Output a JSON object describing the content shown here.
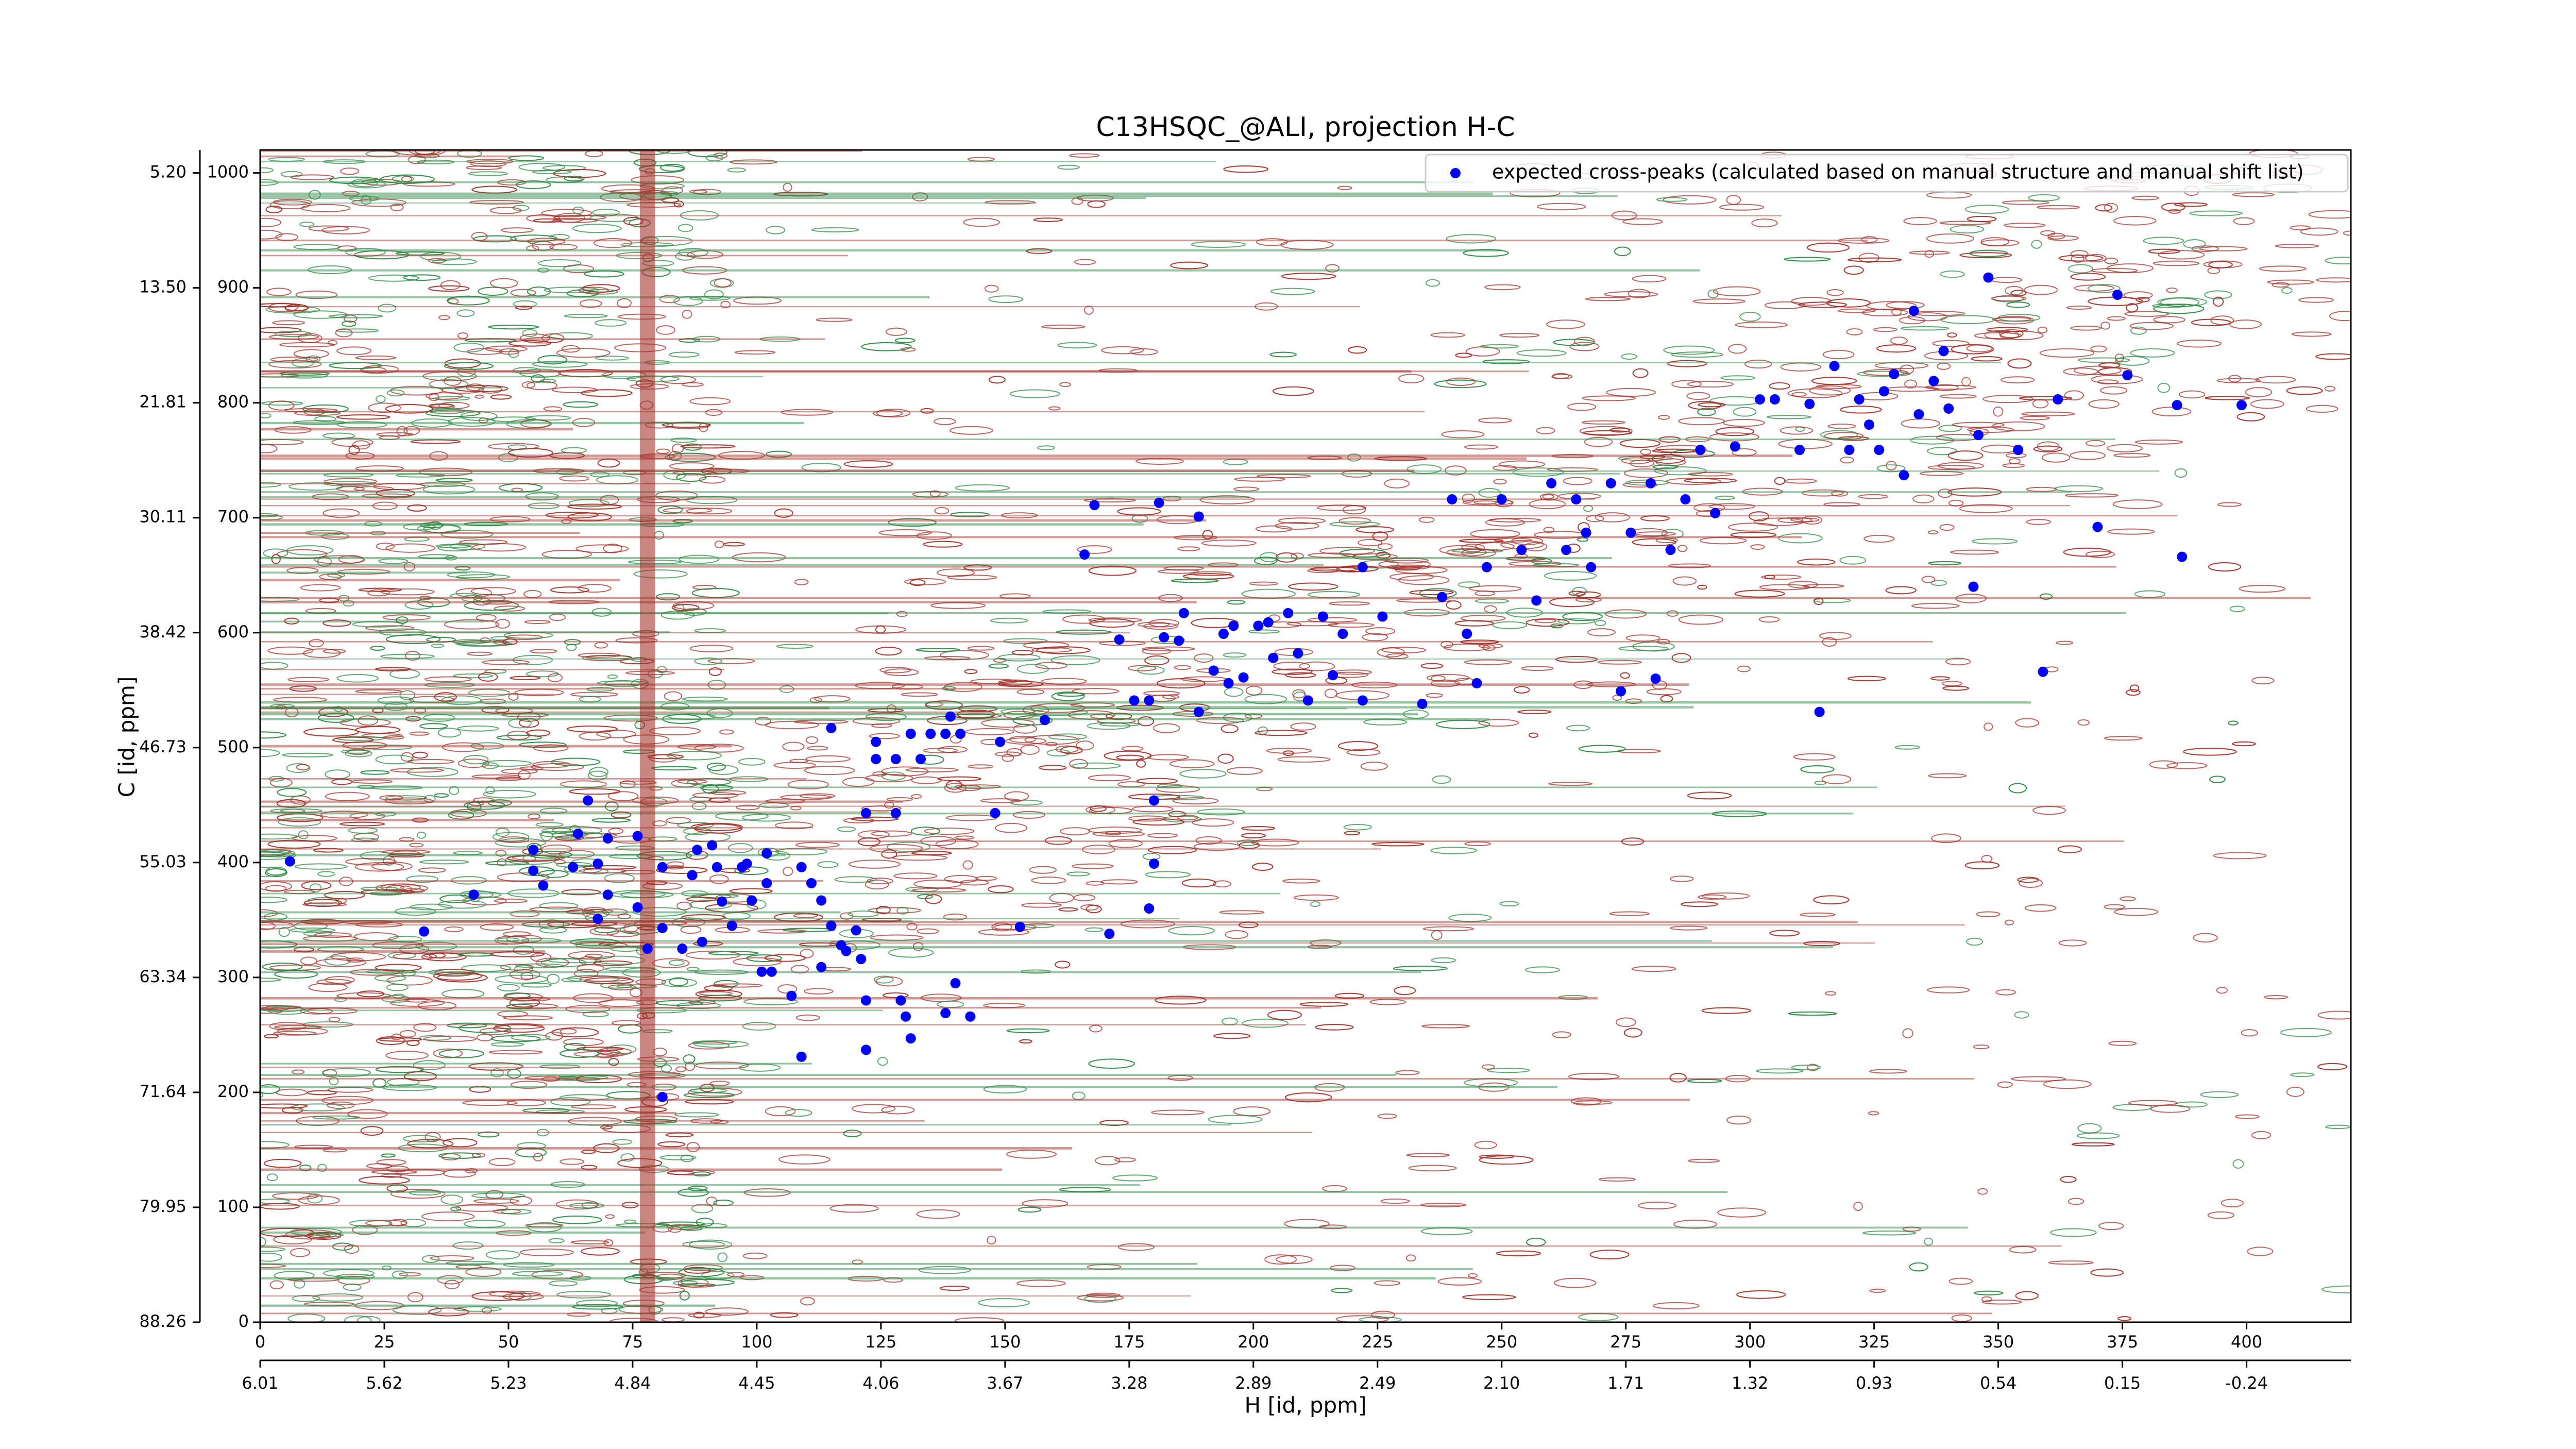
{
  "chart_data": {
    "type": "scatter",
    "title": "C13HSQC_@ALI, projection H-C",
    "xlabel": "H [id, ppm]",
    "ylabel": "C [id, ppm]",
    "xlim": [
      0,
      421
    ],
    "ylim": [
      0,
      1020
    ],
    "xticks": [
      0,
      25,
      50,
      75,
      100,
      125,
      150,
      175,
      200,
      225,
      250,
      275,
      300,
      325,
      350,
      375,
      400
    ],
    "x2ticks": [
      {
        "value": 0,
        "label": "6.01"
      },
      {
        "value": 25,
        "label": "5.62"
      },
      {
        "value": 50,
        "label": "5.23"
      },
      {
        "value": 75,
        "label": "4.84"
      },
      {
        "value": 100,
        "label": "4.45"
      },
      {
        "value": 125,
        "label": "4.06"
      },
      {
        "value": 150,
        "label": "3.67"
      },
      {
        "value": 175,
        "label": "3.28"
      },
      {
        "value": 200,
        "label": "2.89"
      },
      {
        "value": 225,
        "label": "2.49"
      },
      {
        "value": 250,
        "label": "2.10"
      },
      {
        "value": 275,
        "label": "1.71"
      },
      {
        "value": 300,
        "label": "1.32"
      },
      {
        "value": 325,
        "label": "0.93"
      },
      {
        "value": 350,
        "label": "0.54"
      },
      {
        "value": 375,
        "label": "0.15"
      },
      {
        "value": 400,
        "label": "-0.24"
      }
    ],
    "yticks": [
      0,
      100,
      200,
      300,
      400,
      500,
      600,
      700,
      800,
      900,
      1000
    ],
    "y2ticks": [
      {
        "value": 0,
        "label": "88.26"
      },
      {
        "value": 100,
        "label": "79.95"
      },
      {
        "value": 200,
        "label": "71.64"
      },
      {
        "value": 300,
        "label": "63.34"
      },
      {
        "value": 400,
        "label": "55.03"
      },
      {
        "value": 500,
        "label": "46.73"
      },
      {
        "value": 600,
        "label": "38.42"
      },
      {
        "value": 700,
        "label": "30.11"
      },
      {
        "value": 800,
        "label": "21.81"
      },
      {
        "value": 900,
        "label": "13.50"
      },
      {
        "value": 1000,
        "label": "5.20"
      }
    ],
    "legend": "upper right",
    "series": [
      {
        "name": "expected cross-peaks (calculated based on manual structure and manual shift list)",
        "color": "#0000ff",
        "x": [
          6,
          33,
          43,
          55,
          55,
          57,
          66,
          64,
          63,
          68,
          70,
          68,
          70,
          76,
          76,
          78,
          81,
          81,
          85,
          88,
          87,
          89,
          91,
          92,
          93,
          95,
          97,
          98,
          99,
          101,
          102,
          102,
          103,
          107,
          109,
          111,
          113,
          113,
          115,
          115,
          109,
          117,
          118,
          120,
          121,
          122,
          122,
          122,
          124,
          124,
          128,
          128,
          129,
          130,
          131,
          131,
          133,
          135,
          138,
          139,
          141,
          140,
          138,
          143,
          149,
          148,
          153,
          158,
          81,
          166,
          168,
          171,
          173,
          176,
          179,
          179,
          180,
          181,
          180,
          182,
          185,
          186,
          189,
          189,
          192,
          194,
          195,
          196,
          198,
          201,
          203,
          204,
          207,
          209,
          211,
          214,
          216,
          218,
          222,
          222,
          226,
          234,
          238,
          240,
          243,
          245,
          247,
          250,
          254,
          257,
          260,
          263,
          265,
          267,
          268,
          272,
          274,
          276,
          280,
          281,
          284,
          287,
          290,
          293,
          297,
          302,
          305,
          310,
          312,
          314,
          317,
          320,
          322,
          324,
          326,
          327,
          329,
          331,
          333,
          334,
          337,
          339,
          340,
          345,
          346,
          348,
          354,
          359,
          362,
          370,
          374,
          376,
          386,
          387,
          399
        ],
        "y": [
          401,
          340,
          372,
          411,
          393,
          380,
          454,
          425,
          396,
          399,
          421,
          351,
          372,
          423,
          361,
          325,
          396,
          343,
          325,
          411,
          389,
          331,
          415,
          396,
          366,
          345,
          396,
          399,
          367,
          305,
          408,
          382,
          305,
          284,
          396,
          382,
          367,
          309,
          345,
          517,
          231,
          328,
          323,
          341,
          316,
          443,
          280,
          237,
          505,
          490,
          443,
          490,
          280,
          266,
          247,
          512,
          490,
          512,
          512,
          527,
          512,
          295,
          269,
          266,
          505,
          443,
          344,
          524,
          196,
          668,
          711,
          338,
          594,
          541,
          541,
          360,
          399,
          713,
          454,
          596,
          593,
          617,
          701,
          531,
          567,
          599,
          556,
          606,
          561,
          606,
          609,
          578,
          617,
          582,
          541,
          614,
          563,
          599,
          541,
          657,
          614,
          538,
          631,
          716,
          599,
          556,
          657,
          716,
          672,
          628,
          730,
          672,
          716,
          687,
          657,
          730,
          549,
          687,
          730,
          560,
          672,
          716,
          759,
          704,
          762,
          803,
          803,
          759,
          799,
          531,
          832,
          759,
          803,
          781,
          759,
          810,
          825,
          737,
          880,
          790,
          819,
          845,
          795,
          640,
          772,
          909,
          759,
          566,
          803,
          692,
          894,
          824,
          798,
          666,
          798
        ]
      }
    ]
  }
}
